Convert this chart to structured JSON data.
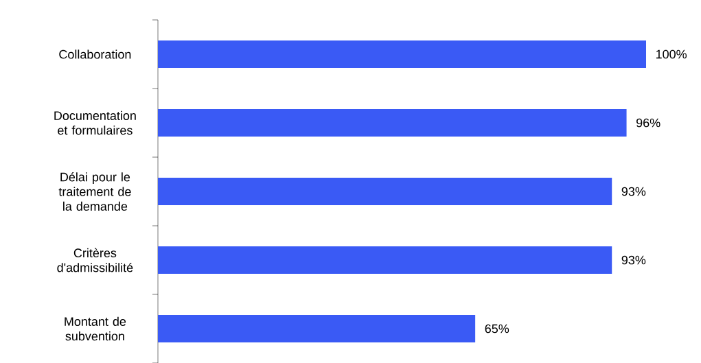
{
  "chart_data": {
    "type": "bar",
    "orientation": "horizontal",
    "categories": [
      "Collaboration",
      "Documentation et formulaires",
      "Délai pour le traitement de la demande",
      "Critères d'admissibilité",
      "Montant de subvention"
    ],
    "values": [
      100,
      96,
      93,
      93,
      65
    ],
    "value_labels": [
      "100%",
      "96%",
      "93%",
      "93%",
      "65%"
    ],
    "color": "#3a5af5",
    "xlim": [
      0,
      100
    ],
    "tick_labels": "y"
  }
}
